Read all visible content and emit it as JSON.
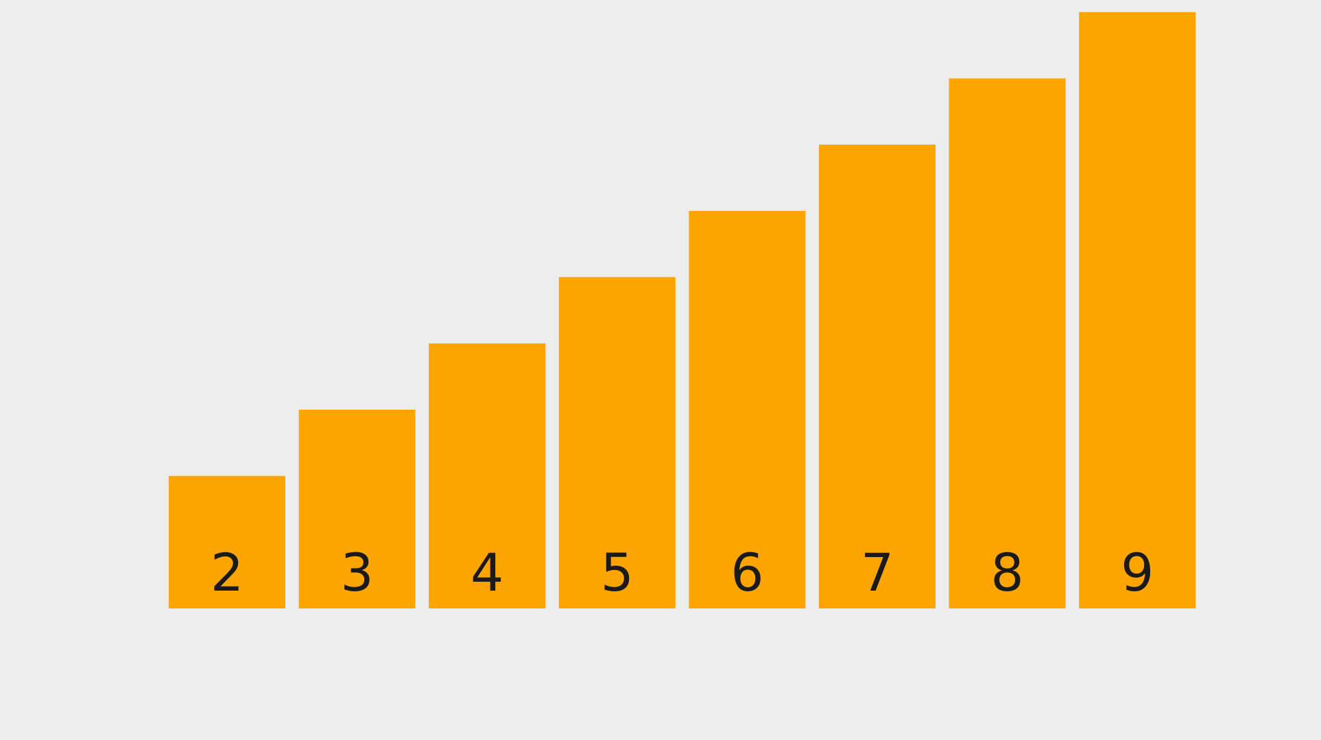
{
  "chart_data": {
    "type": "bar",
    "categories": [
      "2",
      "3",
      "4",
      "5",
      "6",
      "7",
      "8",
      "9"
    ],
    "values": [
      2,
      3,
      4,
      5,
      6,
      7,
      8,
      9
    ],
    "ylim": [
      0,
      9
    ],
    "grid": false,
    "title": "",
    "xlabel": "",
    "ylabel": ""
  },
  "colors": {
    "background": "#ededed",
    "bar": "#fca500",
    "label": "#1a1a1a"
  }
}
